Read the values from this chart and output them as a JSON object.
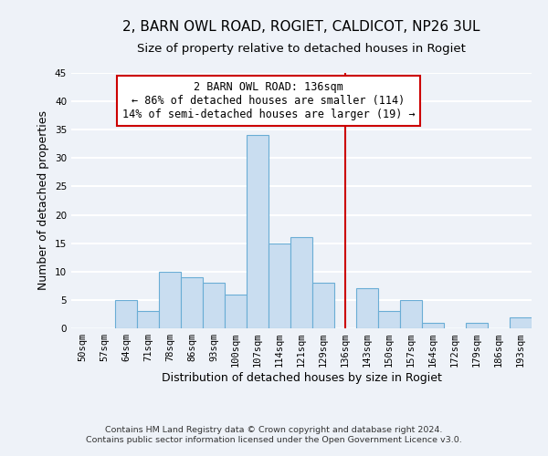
{
  "title": "2, BARN OWL ROAD, ROGIET, CALDICOT, NP26 3UL",
  "subtitle": "Size of property relative to detached houses in Rogiet",
  "xlabel": "Distribution of detached houses by size in Rogiet",
  "ylabel": "Number of detached properties",
  "bin_labels": [
    "50sqm",
    "57sqm",
    "64sqm",
    "71sqm",
    "78sqm",
    "86sqm",
    "93sqm",
    "100sqm",
    "107sqm",
    "114sqm",
    "121sqm",
    "129sqm",
    "136sqm",
    "143sqm",
    "150sqm",
    "157sqm",
    "164sqm",
    "172sqm",
    "179sqm",
    "186sqm",
    "193sqm"
  ],
  "bar_heights": [
    0,
    0,
    5,
    3,
    10,
    9,
    8,
    6,
    34,
    15,
    16,
    8,
    0,
    7,
    3,
    5,
    1,
    0,
    1,
    0,
    2
  ],
  "bar_color": "#c9ddf0",
  "bar_edge_color": "#6aadd5",
  "vline_x_index": 12,
  "vline_color": "#cc0000",
  "annotation_line1": "2 BARN OWL ROAD: 136sqm",
  "annotation_line2": "← 86% of detached houses are smaller (114)",
  "annotation_line3": "14% of semi-detached houses are larger (19) →",
  "ylim": [
    0,
    45
  ],
  "footnote1": "Contains HM Land Registry data © Crown copyright and database right 2024.",
  "footnote2": "Contains public sector information licensed under the Open Government Licence v3.0.",
  "background_color": "#eef2f8",
  "grid_color": "#ffffff",
  "title_fontsize": 11,
  "subtitle_fontsize": 9.5,
  "axis_label_fontsize": 9,
  "tick_fontsize": 7.5,
  "annotation_fontsize": 8.5,
  "footnote_fontsize": 6.8
}
